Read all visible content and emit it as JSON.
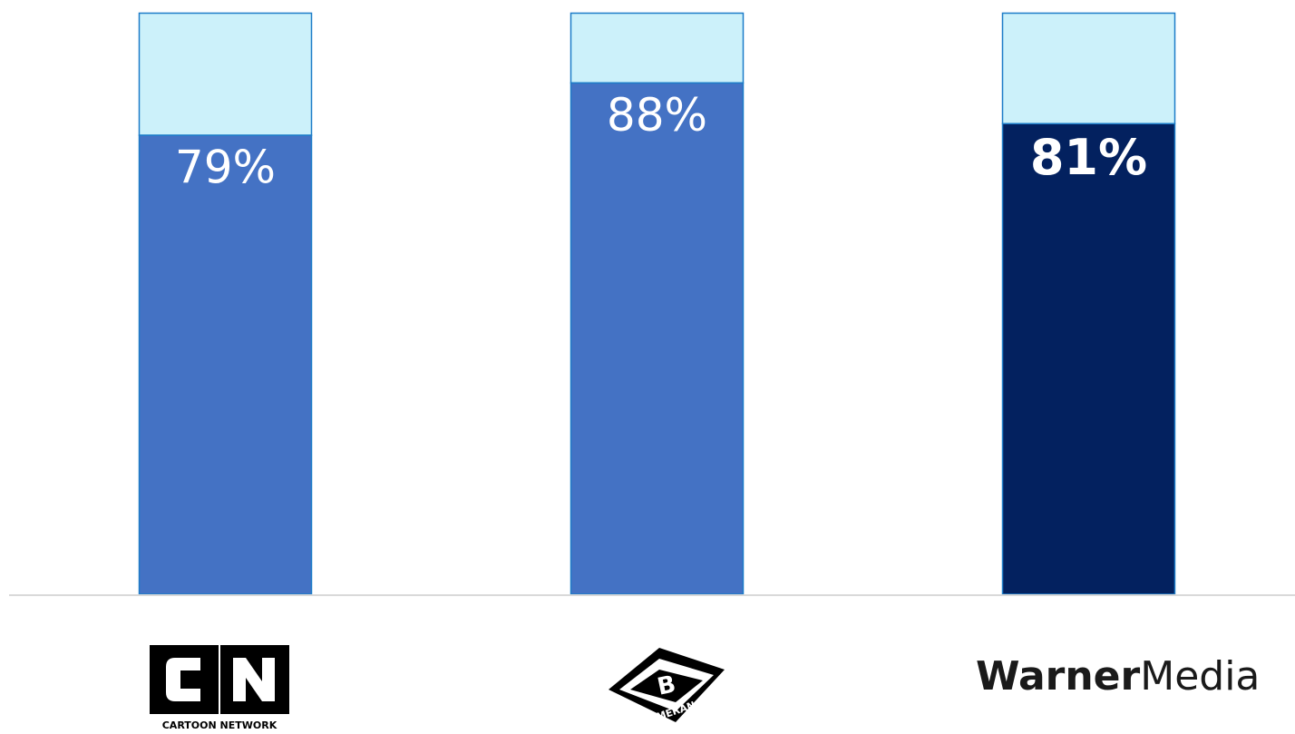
{
  "chart_data": {
    "type": "bar",
    "stacked": true,
    "categories": [
      "CARTOON NETWORK",
      "BOOMERANG",
      "WarnerMedia"
    ],
    "values": [
      79,
      88,
      81
    ],
    "remainder": [
      21,
      12,
      19
    ],
    "data_labels": [
      "79%",
      "88%",
      "81%"
    ],
    "ylim": [
      0,
      100
    ],
    "grid": false,
    "legend": "none",
    "colors": {
      "primary": "#4472C4",
      "highlight": "#03215F",
      "remainder": "#CCF1FA",
      "border": "#1C7CC8",
      "baseline": "#D9D9D9",
      "label": "#FFFFFF"
    }
  },
  "logos": {
    "cn_mark": "CN",
    "cn_text": "CARTOON NETWORK",
    "boomerang_mark": "B",
    "boomerang_text": "BOOMERANG",
    "warner_bold": "Warner",
    "warner_light": "Media"
  }
}
